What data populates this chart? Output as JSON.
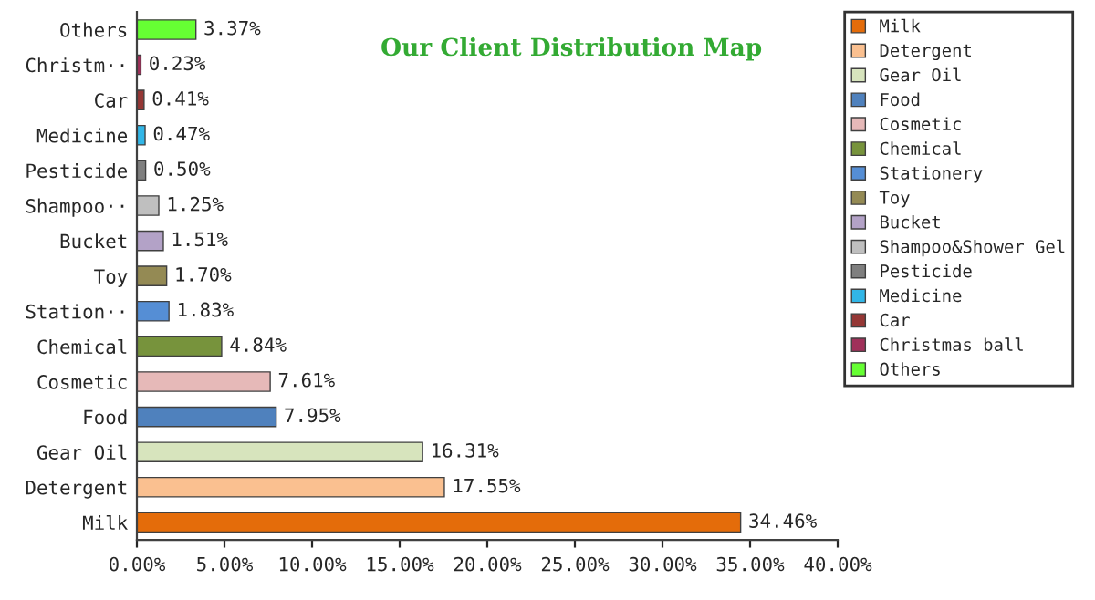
{
  "chart_data": {
    "type": "bar",
    "orientation": "horizontal",
    "title": "Our Client Distribution Map",
    "categories": [
      "Others",
      "Christm··",
      "Car",
      "Medicine",
      "Pesticide",
      "Shampoo··",
      "Bucket",
      "Toy",
      "Station··",
      "Chemical",
      "Cosmetic",
      "Food",
      "Gear Oil",
      "Detergent",
      "Milk"
    ],
    "series": [
      {
        "name": "Milk",
        "color": "#e46c0a",
        "values": [
          null,
          null,
          null,
          null,
          null,
          null,
          null,
          null,
          null,
          null,
          null,
          null,
          null,
          null,
          34.46
        ],
        "value_labels": [
          null,
          null,
          null,
          null,
          null,
          null,
          null,
          null,
          null,
          null,
          null,
          null,
          null,
          null,
          "34.46%"
        ]
      },
      {
        "name": "Detergent",
        "color": "#fac090",
        "values": [
          null,
          null,
          null,
          null,
          null,
          null,
          null,
          null,
          null,
          null,
          null,
          null,
          null,
          17.55,
          null
        ],
        "value_labels": [
          null,
          null,
          null,
          null,
          null,
          null,
          null,
          null,
          null,
          null,
          null,
          null,
          null,
          "17.55%",
          null
        ]
      },
      {
        "name": "Gear Oil",
        "color": "#d7e4bd",
        "values": [
          null,
          null,
          null,
          null,
          null,
          null,
          null,
          null,
          null,
          null,
          null,
          null,
          16.31,
          null,
          null
        ],
        "value_labels": [
          null,
          null,
          null,
          null,
          null,
          null,
          null,
          null,
          null,
          null,
          null,
          null,
          "16.31%",
          null,
          null
        ]
      },
      {
        "name": "Food",
        "color": "#4f81bd",
        "values": [
          null,
          null,
          null,
          null,
          null,
          null,
          null,
          null,
          null,
          null,
          null,
          7.95,
          null,
          null,
          null
        ],
        "value_labels": [
          null,
          null,
          null,
          null,
          null,
          null,
          null,
          null,
          null,
          null,
          null,
          "7.95%",
          null,
          null,
          null
        ]
      },
      {
        "name": "Cosmetic",
        "color": "#e6b9b8",
        "values": [
          null,
          null,
          null,
          null,
          null,
          null,
          null,
          null,
          null,
          null,
          7.61,
          null,
          null,
          null,
          null
        ],
        "value_labels": [
          null,
          null,
          null,
          null,
          null,
          null,
          null,
          null,
          null,
          null,
          "7.61%",
          null,
          null,
          null,
          null
        ]
      },
      {
        "name": "Chemical",
        "color": "#77933c",
        "values": [
          null,
          null,
          null,
          null,
          null,
          null,
          null,
          null,
          null,
          4.84,
          null,
          null,
          null,
          null,
          null
        ],
        "value_labels": [
          null,
          null,
          null,
          null,
          null,
          null,
          null,
          null,
          null,
          "4.84%",
          null,
          null,
          null,
          null,
          null
        ]
      },
      {
        "name": "Stationery",
        "color": "#558ed5",
        "values": [
          null,
          null,
          null,
          null,
          null,
          null,
          null,
          null,
          1.83,
          null,
          null,
          null,
          null,
          null,
          null
        ],
        "value_labels": [
          null,
          null,
          null,
          null,
          null,
          null,
          null,
          null,
          "1.83%",
          null,
          null,
          null,
          null,
          null,
          null
        ]
      },
      {
        "name": "Toy",
        "color": "#948a54",
        "values": [
          null,
          null,
          null,
          null,
          null,
          null,
          null,
          1.7,
          null,
          null,
          null,
          null,
          null,
          null,
          null
        ],
        "value_labels": [
          null,
          null,
          null,
          null,
          null,
          null,
          null,
          "1.70%",
          null,
          null,
          null,
          null,
          null,
          null,
          null
        ]
      },
      {
        "name": "Bucket",
        "color": "#b3a2c7",
        "values": [
          null,
          null,
          null,
          null,
          null,
          null,
          1.51,
          null,
          null,
          null,
          null,
          null,
          null,
          null,
          null
        ],
        "value_labels": [
          null,
          null,
          null,
          null,
          null,
          null,
          "1.51%",
          null,
          null,
          null,
          null,
          null,
          null,
          null,
          null
        ]
      },
      {
        "name": "Shampoo&Shower Gel",
        "color": "#bfbfbf",
        "values": [
          null,
          null,
          null,
          null,
          null,
          1.25,
          null,
          null,
          null,
          null,
          null,
          null,
          null,
          null,
          null
        ],
        "value_labels": [
          null,
          null,
          null,
          null,
          null,
          "1.25%",
          null,
          null,
          null,
          null,
          null,
          null,
          null,
          null,
          null
        ]
      },
      {
        "name": "Pesticide",
        "color": "#7f7f7f",
        "values": [
          null,
          null,
          null,
          null,
          0.5,
          null,
          null,
          null,
          null,
          null,
          null,
          null,
          null,
          null,
          null
        ],
        "value_labels": [
          null,
          null,
          null,
          null,
          "0.50%",
          null,
          null,
          null,
          null,
          null,
          null,
          null,
          null,
          null,
          null
        ]
      },
      {
        "name": "Medicine",
        "color": "#31b6e7",
        "values": [
          null,
          null,
          null,
          0.47,
          null,
          null,
          null,
          null,
          null,
          null,
          null,
          null,
          null,
          null,
          null
        ],
        "value_labels": [
          null,
          null,
          null,
          "0.47%",
          null,
          null,
          null,
          null,
          null,
          null,
          null,
          null,
          null,
          null,
          null
        ]
      },
      {
        "name": "Car",
        "color": "#953735",
        "values": [
          null,
          null,
          0.41,
          null,
          null,
          null,
          null,
          null,
          null,
          null,
          null,
          null,
          null,
          null,
          null
        ],
        "value_labels": [
          null,
          null,
          "0.41%",
          null,
          null,
          null,
          null,
          null,
          null,
          null,
          null,
          null,
          null,
          null,
          null
        ]
      },
      {
        "name": "Christmas ball",
        "color": "#a0305a",
        "values": [
          null,
          0.23,
          null,
          null,
          null,
          null,
          null,
          null,
          null,
          null,
          null,
          null,
          null,
          null,
          null
        ],
        "value_labels": [
          null,
          "0.23%",
          null,
          null,
          null,
          null,
          null,
          null,
          null,
          null,
          null,
          null,
          null,
          null,
          null
        ]
      },
      {
        "name": "Others",
        "color": "#66ff33",
        "values": [
          3.37,
          null,
          null,
          null,
          null,
          null,
          null,
          null,
          null,
          null,
          null,
          null,
          null,
          null,
          null
        ],
        "value_labels": [
          "3.37%",
          null,
          null,
          null,
          null,
          null,
          null,
          null,
          null,
          null,
          null,
          null,
          null,
          null,
          null
        ]
      }
    ],
    "xlim": [
      0,
      40
    ],
    "xticks": [
      {
        "value": 0,
        "label": "0.00%"
      },
      {
        "value": 5,
        "label": "5.00%"
      },
      {
        "value": 10,
        "label": "10.00%"
      },
      {
        "value": 15,
        "label": "15.00%"
      },
      {
        "value": 20,
        "label": "20.00%"
      },
      {
        "value": 25,
        "label": "25.00%"
      },
      {
        "value": 30,
        "label": "30.00%"
      },
      {
        "value": 35,
        "label": "35.00%"
      },
      {
        "value": 40,
        "label": "40.00%"
      }
    ],
    "legend": "right",
    "grid": false
  }
}
